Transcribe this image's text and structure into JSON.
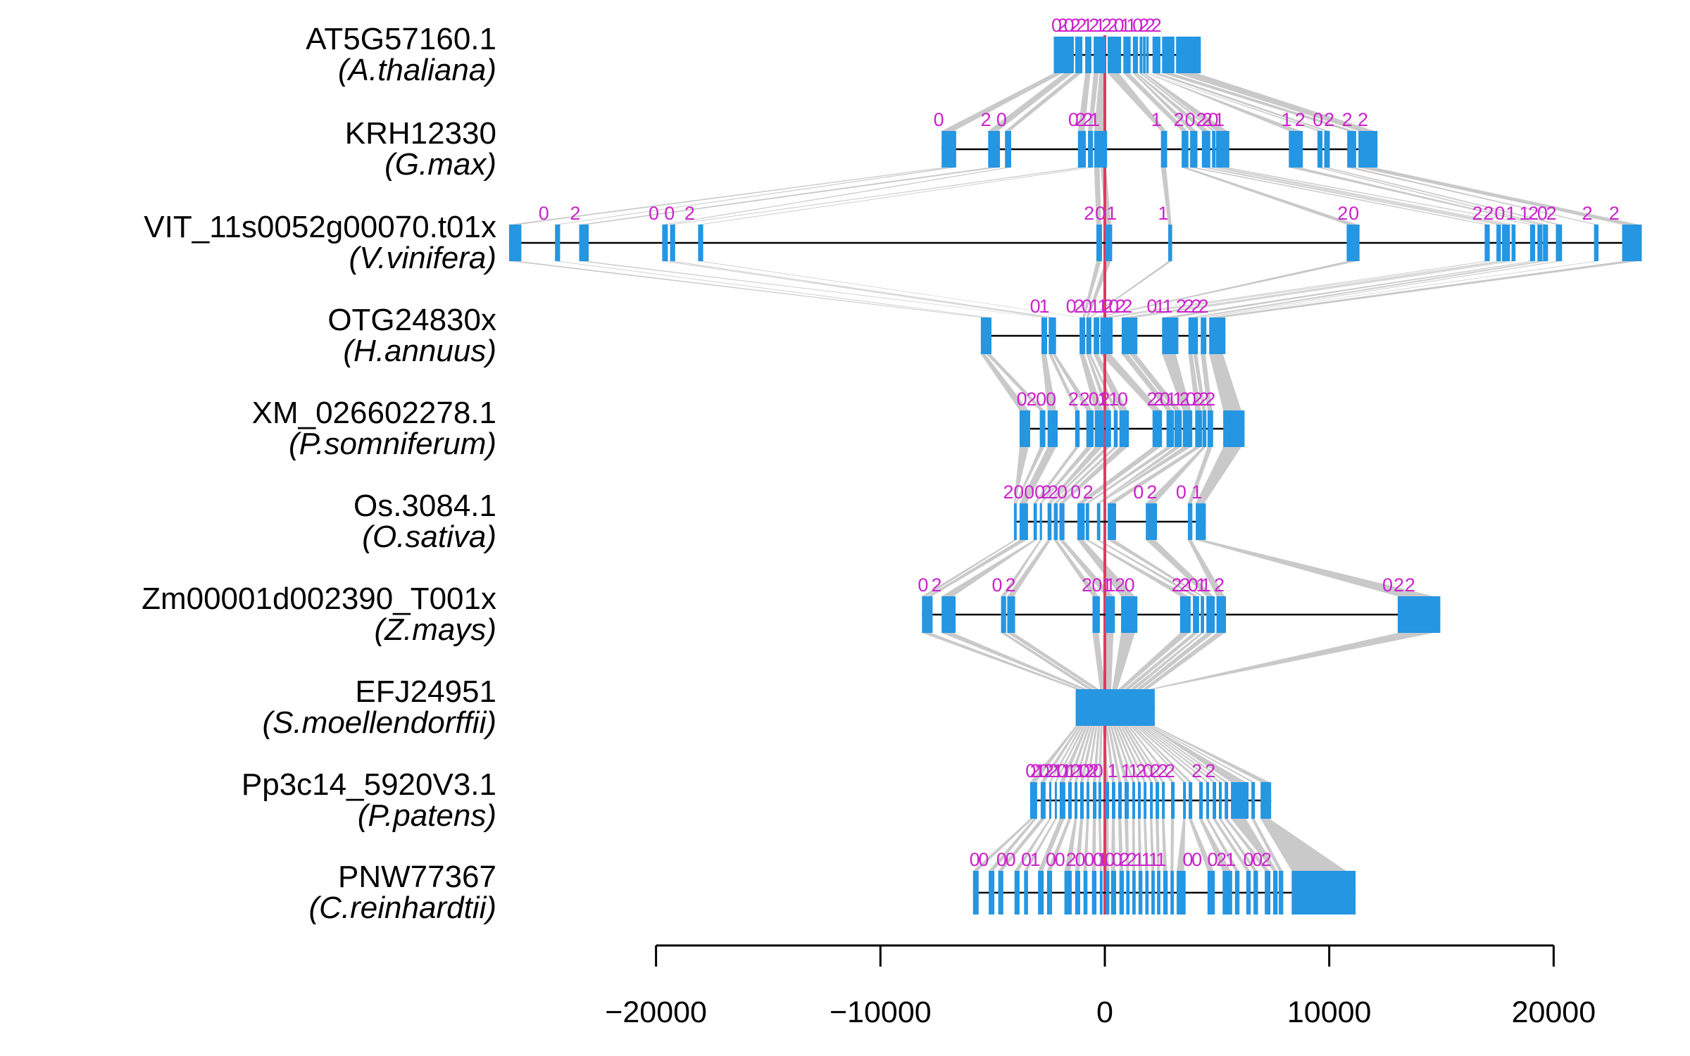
{
  "figure": {
    "description": "Exon-intron gene structure alignment across 10 plant species",
    "colors": {
      "exon": "#2496E2",
      "ribbon": "#C9C9C9",
      "phase": "#CC22CC",
      "origin_line": "#DC3C60",
      "intron_line": "#000000",
      "axis": "#000000",
      "label_text": "#000000",
      "background": "#FFFFFF"
    }
  },
  "chart_data": {
    "type": "gene-structure-alignment",
    "title": "",
    "xlabel": "",
    "x_axis": {
      "ticks": [
        -20000,
        -10000,
        0,
        10000,
        20000
      ],
      "tick_labels": [
        "−20000",
        "−10000",
        "0",
        "10000",
        "20000"
      ],
      "range": [
        -26550,
        23925
      ],
      "grid": false
    },
    "origin_line_x": 0,
    "tracks": [
      {
        "gene": "AT5G57160.1",
        "species": "(A.thaliana)",
        "exons": [
          [
            -2275,
            -1380
          ],
          [
            -1320,
            -1000
          ],
          [
            -875,
            -600
          ],
          [
            -500,
            25
          ],
          [
            125,
            725
          ],
          [
            825,
            1150
          ],
          [
            1250,
            1475
          ],
          [
            1550,
            1675
          ],
          [
            1700,
            1825
          ],
          [
            1850,
            1950
          ],
          [
            2125,
            2475
          ],
          [
            2550,
            3100
          ],
          [
            3175,
            4275
          ]
        ],
        "phase_runs": [
          {
            "f": -2150,
            "t": 2300,
            "s": "02022121220110222"
          }
        ]
      },
      {
        "gene": "KRH12330",
        "species": "(G.max)",
        "exons": [
          [
            -7275,
            -6625
          ],
          [
            -5200,
            -4675
          ],
          [
            -4450,
            -4175
          ],
          [
            -1200,
            -850
          ],
          [
            -750,
            -525
          ],
          [
            -475,
            100
          ],
          [
            2500,
            2775
          ],
          [
            3425,
            3725
          ],
          [
            3800,
            4125
          ],
          [
            4325,
            4700
          ],
          [
            4775,
            4925
          ],
          [
            4950,
            5550
          ],
          [
            8200,
            8825
          ],
          [
            9475,
            9700
          ],
          [
            9775,
            10025
          ],
          [
            10800,
            11200
          ],
          [
            11300,
            12150
          ]
        ],
        "phase_runs": [
          {
            "f": -7400,
            "t": -7400,
            "s": "0"
          },
          {
            "f": -5300,
            "t": -4600,
            "s": "20"
          },
          {
            "f": -1400,
            "t": -450,
            "s": "0221"
          },
          {
            "f": 2300,
            "t": 2300,
            "s": "1"
          },
          {
            "f": 3300,
            "t": 3800,
            "s": "20"
          },
          {
            "f": 4300,
            "t": 5100,
            "s": "2201"
          },
          {
            "f": 8100,
            "t": 8700,
            "s": "12"
          },
          {
            "f": 9500,
            "t": 10000,
            "s": "02"
          },
          {
            "f": 10800,
            "t": 11500,
            "s": "22"
          }
        ]
      },
      {
        "gene": "VIT_11s0052g00070.t01x",
        "species": "(V.vinifera)",
        "exons": [
          [
            -26550,
            -26000
          ],
          [
            -24500,
            -24275
          ],
          [
            -23425,
            -23000
          ],
          [
            -19725,
            -19475
          ],
          [
            -19375,
            -19150
          ],
          [
            -18125,
            -17900
          ],
          [
            -375,
            -125
          ],
          [
            25,
            325
          ],
          [
            2825,
            3000
          ],
          [
            10775,
            11350
          ],
          [
            16925,
            17150
          ],
          [
            17450,
            17650
          ],
          [
            17700,
            18050
          ],
          [
            18125,
            18300
          ],
          [
            18950,
            19175
          ],
          [
            19275,
            19500
          ],
          [
            19525,
            19750
          ],
          [
            20100,
            20375
          ],
          [
            21800,
            22000
          ],
          [
            23050,
            23925
          ]
        ],
        "phase_runs": [
          {
            "f": -25000,
            "t": -25000,
            "s": "0"
          },
          {
            "f": -23600,
            "t": -23600,
            "s": "2"
          },
          {
            "f": -20100,
            "t": -19400,
            "s": "00"
          },
          {
            "f": -18500,
            "t": -18500,
            "s": "2"
          },
          {
            "f": -700,
            "t": 300,
            "s": "201"
          },
          {
            "f": 2600,
            "t": 2600,
            "s": "1"
          },
          {
            "f": 10600,
            "t": 11100,
            "s": "20"
          },
          {
            "f": 16600,
            "t": 18100,
            "s": "2201"
          },
          {
            "f": 18700,
            "t": 19900,
            "s": "1202"
          },
          {
            "f": 21500,
            "t": 21500,
            "s": "2"
          },
          {
            "f": 22700,
            "t": 22700,
            "s": "2"
          }
        ]
      },
      {
        "gene": "OTG24830x",
        "species": "(H.annuus)",
        "exons": [
          [
            -5525,
            -5050
          ],
          [
            -2825,
            -2575
          ],
          [
            -2500,
            -2175
          ],
          [
            -1125,
            -875
          ],
          [
            -825,
            -600
          ],
          [
            -500,
            -250
          ],
          [
            -200,
            350
          ],
          [
            750,
            1450
          ],
          [
            2550,
            3275
          ],
          [
            3725,
            4150
          ],
          [
            4275,
            4525
          ],
          [
            4650,
            5375
          ]
        ],
        "phase_runs": [
          {
            "f": -3100,
            "t": -2700,
            "s": "01"
          },
          {
            "f": -1500,
            "t": -100,
            "s": "02011"
          },
          {
            "f": 150,
            "t": 150,
            "s": "2"
          },
          {
            "f": 400,
            "t": 1000,
            "s": "022"
          },
          {
            "f": 2100,
            "t": 2800,
            "s": "011"
          },
          {
            "f": 3400,
            "t": 4400,
            "s": "2222"
          }
        ]
      },
      {
        "gene": "XM_026602278.1",
        "species": "(P.somniferum)",
        "exons": [
          [
            -3800,
            -3325
          ],
          [
            -2900,
            -2650
          ],
          [
            -2550,
            -2100
          ],
          [
            -1325,
            -1125
          ],
          [
            -825,
            -500
          ],
          [
            -450,
            -25
          ],
          [
            25,
            275
          ],
          [
            400,
            575
          ],
          [
            650,
            1075
          ],
          [
            2125,
            2550
          ],
          [
            2750,
            3075
          ],
          [
            3100,
            3425
          ],
          [
            3475,
            3900
          ],
          [
            4025,
            4325
          ],
          [
            4350,
            4525
          ],
          [
            4575,
            4825
          ],
          [
            5275,
            6225
          ]
        ],
        "phase_runs": [
          {
            "f": -3700,
            "t": -2400,
            "s": "0200"
          },
          {
            "f": -1400,
            "t": -1400,
            "s": "2"
          },
          {
            "f": -900,
            "t": -100,
            "s": "201"
          },
          {
            "f": 0,
            "t": 800,
            "s": "210"
          },
          {
            "f": 2100,
            "t": 4700,
            "s": "2201120222"
          }
        ]
      },
      {
        "gene": "Os.3084.1",
        "species": "(O.sativa)",
        "exons": [
          [
            -4050,
            -3925
          ],
          [
            -3800,
            -3425
          ],
          [
            -3175,
            -3025
          ],
          [
            -2900,
            -2800
          ],
          [
            -2550,
            -2375
          ],
          [
            -2275,
            -2100
          ],
          [
            -2025,
            -1800
          ],
          [
            -1225,
            -900
          ],
          [
            -850,
            -700
          ],
          [
            -350,
            -200
          ],
          [
            125,
            500
          ],
          [
            1825,
            2325
          ],
          [
            3700,
            3900
          ],
          [
            4050,
            4500
          ]
        ],
        "phase_runs": [
          {
            "f": -4300,
            "t": -2900,
            "s": "2000"
          },
          {
            "f": -2600,
            "t": -2600,
            "s": "2"
          },
          {
            "f": -2300,
            "t": -1900,
            "s": "20"
          },
          {
            "f": -1300,
            "t": -750,
            "s": "02"
          },
          {
            "f": 1500,
            "t": 2100,
            "s": "02"
          },
          {
            "f": 3400,
            "t": 4100,
            "s": "01"
          }
        ]
      },
      {
        "gene": "Zm00001d002390_T001x",
        "species": "(Z.mays)",
        "exons": [
          [
            -8150,
            -7675
          ],
          [
            -7275,
            -6650
          ],
          [
            -4625,
            -4400
          ],
          [
            -4350,
            -4000
          ],
          [
            -550,
            -225
          ],
          [
            25,
            450
          ],
          [
            725,
            1450
          ],
          [
            3350,
            3825
          ],
          [
            3925,
            4200
          ],
          [
            4275,
            4425
          ],
          [
            4525,
            4900
          ],
          [
            4975,
            5400
          ],
          [
            13050,
            14950
          ]
        ],
        "phase_runs": [
          {
            "f": -8100,
            "t": -7500,
            "s": "02"
          },
          {
            "f": -4800,
            "t": -4200,
            "s": "02"
          },
          {
            "f": -800,
            "t": 100,
            "s": "201"
          },
          {
            "f": 250,
            "t": 1100,
            "s": "120"
          },
          {
            "f": 3200,
            "t": 4300,
            "s": "2201"
          },
          {
            "f": 4500,
            "t": 5100,
            "s": "12"
          },
          {
            "f": 12600,
            "t": 13600,
            "s": "022"
          }
        ]
      },
      {
        "gene": "EFJ24951",
        "species": "(S.moellendorffii)",
        "exons": [
          [
            -1300,
            2225
          ]
        ],
        "phase_runs": []
      },
      {
        "gene": "Pp3c14_5920V3.1",
        "species": "(P.patens)",
        "exons": [
          [
            -3330,
            -3015
          ],
          [
            -2860,
            -2640
          ],
          [
            -2480,
            -2385
          ],
          [
            -2230,
            -2135
          ],
          [
            -2010,
            -1760
          ],
          [
            -1635,
            -1475
          ],
          [
            -1350,
            -1225
          ],
          [
            -1100,
            -940
          ],
          [
            -815,
            -690
          ],
          [
            -535,
            -375
          ],
          [
            -285,
            -155
          ],
          [
            25,
            190
          ],
          [
            315,
            470
          ],
          [
            595,
            755
          ],
          [
            880,
            1070
          ],
          [
            1225,
            1350
          ],
          [
            1475,
            1600
          ],
          [
            1730,
            1855
          ],
          [
            2010,
            2135
          ],
          [
            2260,
            2420
          ],
          [
            2545,
            2670
          ],
          [
            2950,
            3110
          ],
          [
            3485,
            3610
          ],
          [
            3735,
            3895
          ],
          [
            4205,
            4365
          ],
          [
            4520,
            4645
          ],
          [
            4805,
            4960
          ],
          [
            5085,
            5210
          ],
          [
            5340,
            5495
          ],
          [
            5620,
            6405
          ],
          [
            6530,
            6690
          ],
          [
            6940,
            7410
          ]
        ],
        "phase_runs": [
          {
            "f": -3300,
            "t": -300,
            "s": "0210221011210220"
          },
          {
            "f": 350,
            "t": 350,
            "s": "1"
          },
          {
            "f": 950,
            "t": 2900,
            "s": "1120222"
          },
          {
            "f": 4100,
            "t": 4100,
            "s": "2"
          },
          {
            "f": 4700,
            "t": 4700,
            "s": "2"
          }
        ]
      },
      {
        "gene": "PNW77367",
        "species": "(C.reinhardtii)",
        "exon_height": 62,
        "exons": [
          [
            -5875,
            -5625
          ],
          [
            -5175,
            -4925
          ],
          [
            -4750,
            -4525
          ],
          [
            -4025,
            -3800
          ],
          [
            -3600,
            -3425
          ],
          [
            -2975,
            -2725
          ],
          [
            -2575,
            -2350
          ],
          [
            -1800,
            -1475
          ],
          [
            -1325,
            -1100
          ],
          [
            -950,
            -775
          ],
          [
            -575,
            -375
          ],
          [
            -225,
            -100
          ],
          [
            50,
            200
          ],
          [
            275,
            500
          ],
          [
            650,
            850
          ],
          [
            950,
            1100
          ],
          [
            1225,
            1375
          ],
          [
            1500,
            1675
          ],
          [
            1800,
            1950
          ],
          [
            2075,
            2225
          ],
          [
            2325,
            2475
          ],
          [
            2600,
            2800
          ],
          [
            2925,
            3075
          ],
          [
            3200,
            3600
          ],
          [
            4575,
            4900
          ],
          [
            5250,
            5675
          ],
          [
            5800,
            6000
          ],
          [
            6300,
            6500
          ],
          [
            6625,
            6825
          ],
          [
            7125,
            7375
          ],
          [
            7500,
            7700
          ],
          [
            7750,
            7950
          ],
          [
            8325,
            11175
          ]
        ],
        "phase_runs": [
          {
            "f": -5800,
            "t": -5400,
            "s": "00"
          },
          {
            "f": -4600,
            "t": -4200,
            "s": "00"
          },
          {
            "f": -3500,
            "t": -3100,
            "s": "01"
          },
          {
            "f": -2400,
            "t": -2000,
            "s": "00"
          },
          {
            "f": -1500,
            "t": -300,
            "s": "2000"
          },
          {
            "f": -100,
            "t": 2500,
            "s": "100221111"
          },
          {
            "f": 3700,
            "t": 4100,
            "s": "00"
          },
          {
            "f": 4800,
            "t": 5600,
            "s": "021"
          },
          {
            "f": 6400,
            "t": 7200,
            "s": "002"
          }
        ]
      }
    ]
  }
}
